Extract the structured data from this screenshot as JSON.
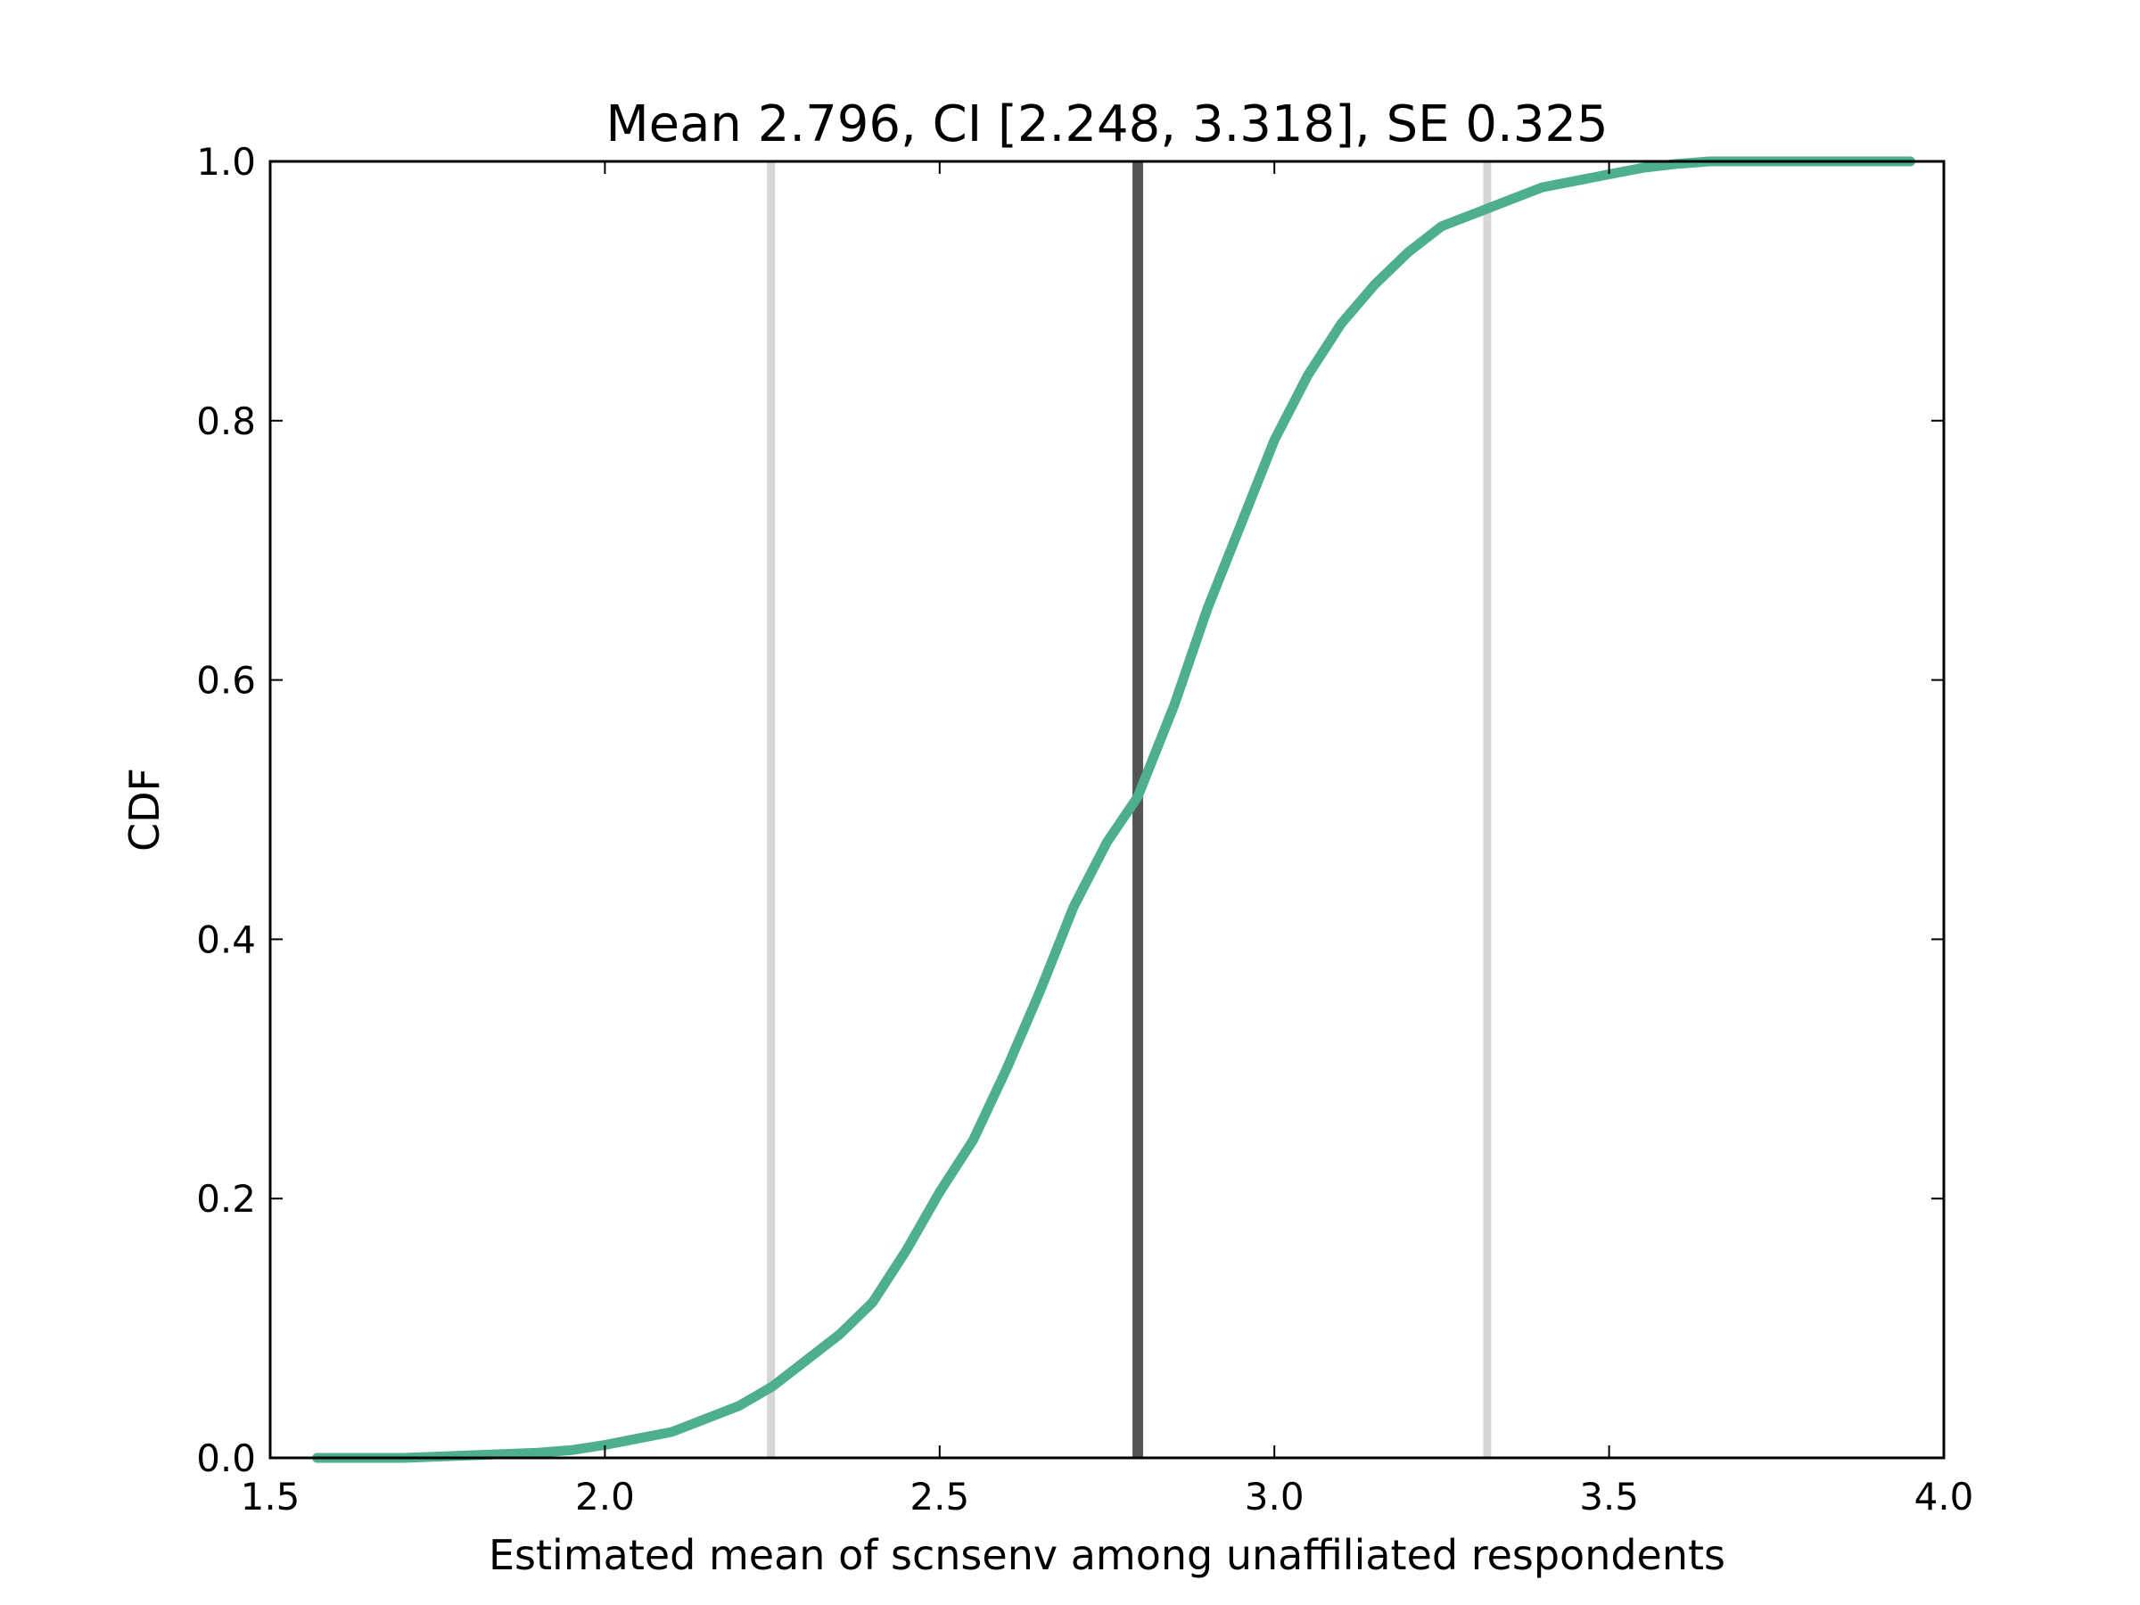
{
  "chart_data": {
    "type": "line",
    "title": "Mean 2.796, CI [2.248, 3.318], SE 0.325",
    "xlabel": "Estimated mean of scnsenv among unaffiliated respondents",
    "ylabel": "CDF",
    "xlim": [
      1.5,
      4.0
    ],
    "ylim": [
      0.0,
      1.0
    ],
    "xticks": [
      "1.5",
      "2.0",
      "2.5",
      "3.0",
      "3.5",
      "4.0"
    ],
    "yticks": [
      "0.0",
      "0.2",
      "0.4",
      "0.6",
      "0.8",
      "1.0"
    ],
    "grid": false,
    "legend": "none",
    "colors": {
      "cdf_line": "#4daf8c",
      "mean_line": "#555555",
      "ci_lines": "#d6d6d6",
      "axes": "#000000"
    },
    "vertical_lines": [
      {
        "x": 2.248,
        "role": "ci-lower"
      },
      {
        "x": 2.796,
        "role": "mean"
      },
      {
        "x": 3.318,
        "role": "ci-upper"
      }
    ],
    "series": [
      {
        "x": [
          1.57,
          1.7,
          1.8,
          1.9,
          1.95,
          2.0,
          2.05,
          2.1,
          2.15,
          2.2,
          2.25,
          2.3,
          2.35,
          2.4,
          2.45,
          2.5,
          2.55,
          2.6,
          2.65,
          2.7,
          2.75,
          2.796,
          2.85,
          2.9,
          2.95,
          3.0,
          3.05,
          3.1,
          3.15,
          3.2,
          3.25,
          3.3,
          3.35,
          3.4,
          3.45,
          3.5,
          3.55,
          3.6,
          3.65,
          3.8,
          3.95
        ],
        "y": [
          0.0,
          0.0,
          0.002,
          0.004,
          0.006,
          0.01,
          0.015,
          0.02,
          0.03,
          0.04,
          0.055,
          0.075,
          0.095,
          0.12,
          0.16,
          0.205,
          0.245,
          0.3,
          0.36,
          0.425,
          0.475,
          0.51,
          0.58,
          0.655,
          0.72,
          0.785,
          0.835,
          0.875,
          0.905,
          0.93,
          0.95,
          0.96,
          0.97,
          0.98,
          0.985,
          0.99,
          0.995,
          0.998,
          1.0,
          1.0,
          1.0
        ]
      }
    ]
  }
}
